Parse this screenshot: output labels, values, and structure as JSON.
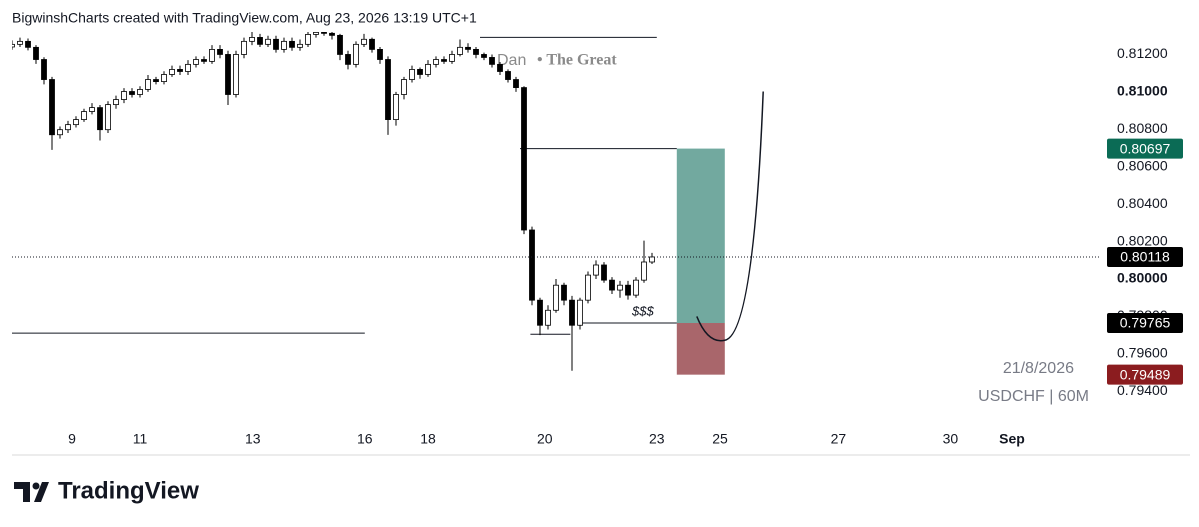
{
  "header": "BigwinshCharts created with TradingView.com, Aug 23, 2026 13:19 UTC+1",
  "footer": "TradingView",
  "chart_data": {
    "type": "candlestick",
    "watermark": "Dan",
    "watermark_2": "• The Great",
    "annotation": "$$$",
    "date_note": "21/8/2026",
    "symbol": "USDCHF | 60M",
    "up_color": "#ffffff",
    "down_color": "#000000",
    "wick_color": "#000000",
    "xlim": [
      0,
      136
    ],
    "ylim": [
      0.7922,
      0.8132
    ],
    "xticks": [
      {
        "value": 7.5,
        "label": "9"
      },
      {
        "value": 16,
        "label": "11"
      },
      {
        "value": 30.1,
        "label": "13"
      },
      {
        "value": 44.1,
        "label": "16"
      },
      {
        "value": 52,
        "label": "18"
      },
      {
        "value": 66.6,
        "label": "20"
      },
      {
        "value": 80.6,
        "label": "23"
      },
      {
        "value": 88.5,
        "label": "25"
      },
      {
        "value": 103.3,
        "label": "27"
      },
      {
        "value": 117.3,
        "label": "30"
      },
      {
        "value": 125,
        "label": "Sep"
      }
    ],
    "yticks": [
      {
        "value": 0.794,
        "label": "0.79400"
      },
      {
        "value": 0.796,
        "label": "0.79600"
      },
      {
        "value": 0.798,
        "label": "0.79800"
      },
      {
        "value": 0.8,
        "label": "0.80000"
      },
      {
        "value": 0.802,
        "label": "0.80200"
      },
      {
        "value": 0.804,
        "label": "0.80400"
      },
      {
        "value": 0.806,
        "label": "0.80600"
      },
      {
        "value": 0.808,
        "label": "0.80800"
      },
      {
        "value": 0.81,
        "label": "0.81000"
      },
      {
        "value": 0.812,
        "label": "0.81200"
      }
    ],
    "open": [
      0.8124,
      0.81254,
      0.8127,
      0.81238,
      0.81173,
      0.81066,
      0.80771,
      0.80798,
      0.80825,
      0.80852,
      0.80895,
      0.80916,
      0.80798,
      0.80932,
      0.80959,
      0.81002,
      0.80986,
      0.81013,
      0.81066,
      0.81055,
      0.81093,
      0.8112,
      0.81109,
      0.81147,
      0.81173,
      0.81163,
      0.81227,
      0.812,
      0.80986,
      0.812,
      0.8127,
      0.81291,
      0.81254,
      0.81281,
      0.81227,
      0.8127,
      0.81238,
      0.81254,
      0.81307,
      0.81318,
      0.81313,
      0.81302,
      0.812,
      0.81147,
      0.81254,
      0.81281,
      0.81227,
      0.81173,
      0.80852,
      0.80986,
      0.81066,
      0.8112,
      0.81093,
      0.81147,
      0.81173,
      0.81163,
      0.812,
      0.81238,
      0.81227,
      0.812,
      0.81184,
      0.81147,
      0.81109,
      0.81066,
      0.81023,
      0.80262,
      0.79887,
      0.79753,
      0.79833,
      0.79967,
      0.79887,
      0.79753,
      0.79887,
      0.80021,
      0.80075,
      0.79994,
      0.79941,
      0.79967,
      0.79914,
      0.79994,
      0.80091
    ],
    "high": [
      0.81275,
      0.8129,
      0.81285,
      0.8125,
      0.81185,
      0.8108,
      0.80815,
      0.80845,
      0.8087,
      0.8091,
      0.8094,
      0.8093,
      0.8095,
      0.8098,
      0.8102,
      0.8102,
      0.8103,
      0.8109,
      0.8108,
      0.8111,
      0.8114,
      0.8114,
      0.8117,
      0.8119,
      0.8119,
      0.8125,
      0.8125,
      0.8122,
      0.8122,
      0.8129,
      0.8132,
      0.8131,
      0.813,
      0.813,
      0.8129,
      0.8129,
      0.8128,
      0.8133,
      0.8134,
      0.8134,
      0.8133,
      0.8131,
      0.8122,
      0.8127,
      0.8131,
      0.8129,
      0.8124,
      0.8119,
      0.81,
      0.8108,
      0.8114,
      0.8113,
      0.8117,
      0.8119,
      0.8119,
      0.8122,
      0.8128,
      0.8126,
      0.8124,
      0.8121,
      0.812,
      0.8116,
      0.8112,
      0.8108,
      0.8103,
      0.8028,
      0.799,
      0.7986,
      0.8,
      0.7998,
      0.7991,
      0.799,
      0.8004,
      0.801,
      0.8009,
      0.8001,
      0.7999,
      0.7999,
      0.8001,
      0.80205,
      0.8014
    ],
    "low": [
      0.81225,
      0.8124,
      0.81222,
      0.8115,
      0.8104,
      0.8069,
      0.8075,
      0.8078,
      0.8081,
      0.8084,
      0.8088,
      0.8074,
      0.8078,
      0.8091,
      0.8094,
      0.8097,
      0.8097,
      0.81,
      0.8104,
      0.8104,
      0.8108,
      0.8109,
      0.8109,
      0.8113,
      0.8115,
      0.8115,
      0.8118,
      0.8093,
      0.8097,
      0.8118,
      0.8125,
      0.8124,
      0.8124,
      0.8121,
      0.8121,
      0.8122,
      0.8122,
      0.8124,
      0.8129,
      0.813,
      0.8128,
      0.8117,
      0.8112,
      0.8113,
      0.8124,
      0.8121,
      0.8115,
      0.8077,
      0.8082,
      0.8096,
      0.8105,
      0.8107,
      0.8108,
      0.8113,
      0.8115,
      0.8115,
      0.8119,
      0.8121,
      0.8118,
      0.8117,
      0.8113,
      0.8109,
      0.8105,
      0.81,
      0.8024,
      0.7986,
      0.797,
      0.7973,
      0.7982,
      0.7986,
      0.7951,
      0.7973,
      0.7987,
      0.8,
      0.7998,
      0.7992,
      0.799,
      0.7989,
      0.799,
      0.7998,
      0.8008
    ],
    "close": [
      0.81254,
      0.8127,
      0.81238,
      0.81173,
      0.81066,
      0.80771,
      0.80798,
      0.80825,
      0.80852,
      0.80895,
      0.80916,
      0.80798,
      0.80932,
      0.80959,
      0.81002,
      0.80986,
      0.81013,
      0.81066,
      0.81055,
      0.81093,
      0.8112,
      0.81109,
      0.81147,
      0.81173,
      0.81163,
      0.81227,
      0.812,
      0.80986,
      0.812,
      0.8127,
      0.81291,
      0.81254,
      0.81281,
      0.81227,
      0.8127,
      0.81238,
      0.81254,
      0.81307,
      0.81318,
      0.81313,
      0.81302,
      0.812,
      0.81147,
      0.81254,
      0.81281,
      0.81227,
      0.81173,
      0.80852,
      0.80986,
      0.81066,
      0.8112,
      0.81093,
      0.81147,
      0.81173,
      0.81163,
      0.812,
      0.81238,
      0.81227,
      0.812,
      0.81184,
      0.81147,
      0.81109,
      0.81066,
      0.81023,
      0.80262,
      0.79887,
      0.79753,
      0.79833,
      0.79967,
      0.79887,
      0.79753,
      0.79887,
      0.80021,
      0.80075,
      0.79994,
      0.79941,
      0.79967,
      0.79914,
      0.79994,
      0.80091,
      0.80118
    ],
    "lines": [
      {
        "y": 0.79711,
        "x": [
          0,
          44.1
        ]
      },
      {
        "y": 0.81291,
        "x": [
          58.5,
          80.6
        ]
      },
      {
        "y": 0.80697,
        "x": [
          63.5,
          83.1
        ]
      },
      {
        "y": 0.79765,
        "x": [
          71,
          83.1
        ]
      },
      {
        "y": 0.79705,
        "x": [
          64.8,
          69.8
        ]
      }
    ],
    "current_price": 0.80118,
    "position": {
      "entry": 0.79765,
      "target": 0.80697,
      "stop": 0.79489,
      "x": [
        83.1,
        89.1
      ],
      "target_color": "#72a99f",
      "stop_color": "#a9666b"
    },
    "projection": {
      "x": [
        85.6,
        89.1,
        93.9
      ],
      "y": [
        0.798,
        0.79673,
        0.81002
      ]
    },
    "price_labels": [
      {
        "value": 0.80697,
        "color": "#0b6b55"
      },
      {
        "value": 0.80118,
        "color": "#000000"
      },
      {
        "value": 0.79765,
        "color": "#000000"
      },
      {
        "value": 0.79489,
        "color": "#8b1c1f"
      }
    ]
  }
}
